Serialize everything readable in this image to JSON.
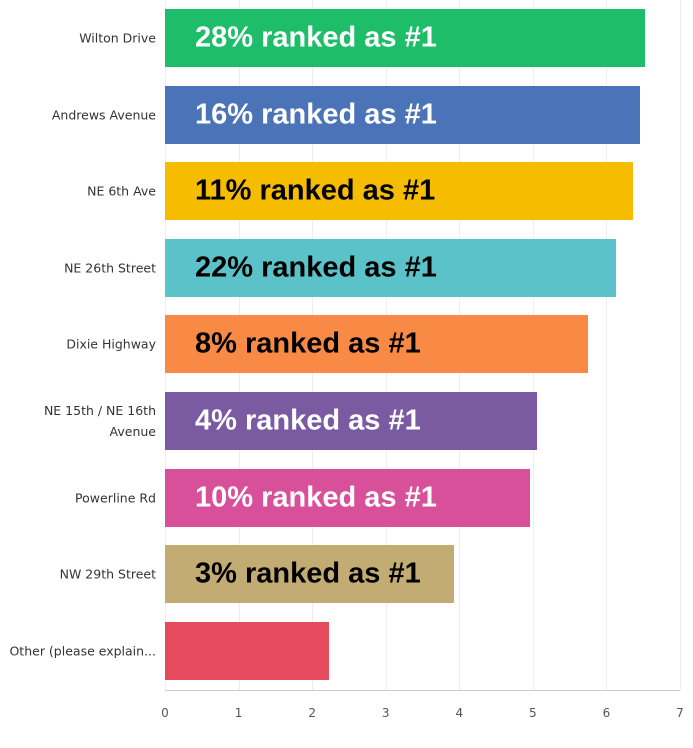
{
  "chart_data": {
    "type": "barh",
    "categories": [
      "Wilton Drive",
      "Andrews Avenue",
      "NE 6th Ave",
      "NE 26th Street",
      "Dixie Highway",
      "NE 15th / NE 16th Avenue",
      "Powerline Rd",
      "NW 29th Street",
      "Other (please explain..."
    ],
    "values": [
      6.52,
      6.45,
      6.36,
      6.13,
      5.75,
      5.05,
      4.96,
      3.93,
      2.23
    ],
    "colors": [
      "#1ebd6a",
      "#4a73b8",
      "#f6bd00",
      "#5ac2c8",
      "#f88a45",
      "#7a5aa0",
      "#d9509a",
      "#c2ac74",
      "#e54b5c"
    ],
    "annotations": [
      "28% ranked as #1",
      "16% ranked as #1",
      "11% ranked as #1",
      "22% ranked as #1",
      "8% ranked as #1",
      "4% ranked as #1",
      "10% ranked as #1",
      "3% ranked as #1",
      null
    ],
    "xlim": [
      0,
      7
    ],
    "xticks": [
      0,
      1,
      2,
      3,
      4,
      5,
      6,
      7
    ],
    "grid": true
  }
}
